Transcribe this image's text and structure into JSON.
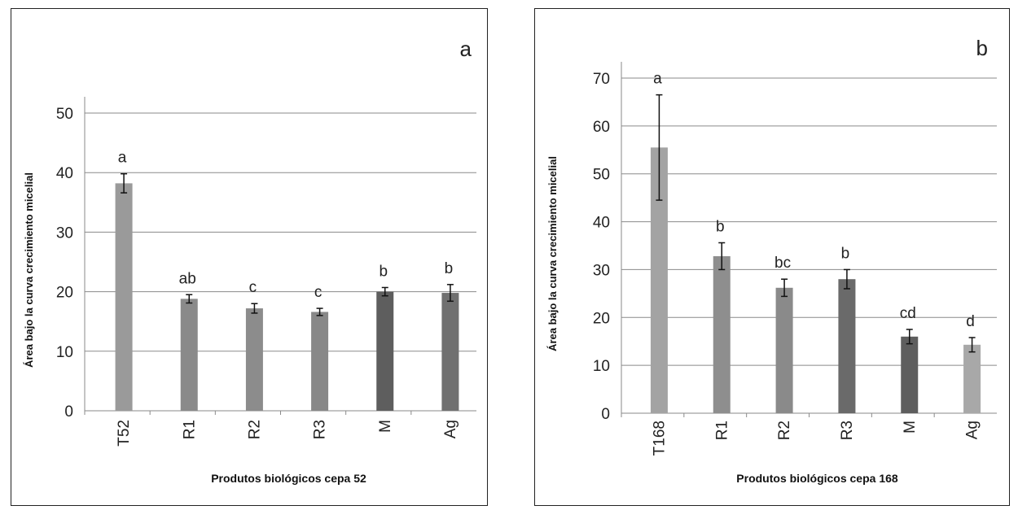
{
  "chart_data": [
    {
      "type": "bar",
      "panel_label": "a",
      "xlabel": "Produtos biológicos cepa 52",
      "ylabel": "Área bajo la curva crecimiento micelial",
      "ylim": [
        0,
        50
      ],
      "yticks": [
        0,
        10,
        20,
        30,
        40,
        50
      ],
      "grid": true,
      "categories": [
        "T52",
        "R1",
        "R2",
        "R3",
        "M",
        "Ag"
      ],
      "values": [
        38.2,
        18.8,
        17.2,
        16.6,
        20.0,
        19.8
      ],
      "errors": [
        1.6,
        0.7,
        0.8,
        0.6,
        0.7,
        1.4
      ],
      "significance": [
        "a",
        "ab",
        "c",
        "c",
        "b",
        "b"
      ],
      "colors": [
        "#9a9a9a",
        "#8a8a8a",
        "#8c8c8c",
        "#888888",
        "#5e5e5e",
        "#707070"
      ]
    },
    {
      "type": "bar",
      "panel_label": "b",
      "xlabel": "Produtos biológicos cepa 168",
      "ylabel": "Área bajo la curva crecimiento micelial",
      "ylim": [
        0,
        70
      ],
      "yticks": [
        0,
        10,
        20,
        30,
        40,
        50,
        60,
        70
      ],
      "grid": true,
      "categories": [
        "T168",
        "R1",
        "R2",
        "R3",
        "M",
        "Ag"
      ],
      "values": [
        55.5,
        32.8,
        26.2,
        28.0,
        16.0,
        14.3
      ],
      "errors": [
        11.0,
        2.8,
        1.8,
        2.0,
        1.5,
        1.5
      ],
      "significance": [
        "a",
        "b",
        "bc",
        "b",
        "cd",
        "d"
      ],
      "colors": [
        "#a3a3a3",
        "#8e8e8e",
        "#8a8a8a",
        "#6a6a6a",
        "#5e5e5e",
        "#a8a8a8"
      ]
    }
  ]
}
